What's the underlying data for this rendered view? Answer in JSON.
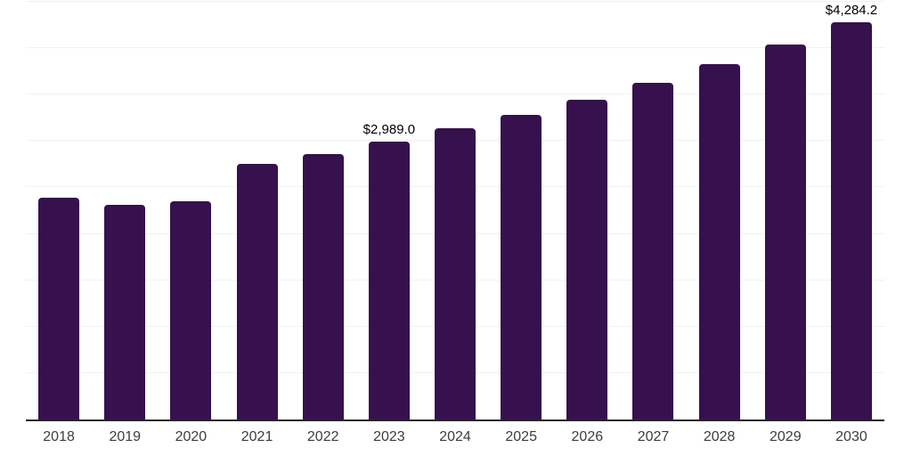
{
  "chart_data": {
    "type": "bar",
    "title": "",
    "xlabel": "",
    "ylabel": "",
    "categories": [
      "2018",
      "2019",
      "2020",
      "2021",
      "2022",
      "2023",
      "2024",
      "2025",
      "2026",
      "2027",
      "2028",
      "2029",
      "2030"
    ],
    "values": [
      2390,
      2310,
      2355,
      2757,
      2862,
      2989.0,
      3140,
      3285,
      3445,
      3630,
      3827,
      4040,
      4284.2
    ],
    "value_labels": [
      {
        "category": "2023",
        "text": "$2,989.0"
      },
      {
        "category": "2030",
        "text": "$4,284.2"
      }
    ],
    "ylim": [
      0,
      4500
    ],
    "gridline_step": 500,
    "grid": "horizontal-faint",
    "legend": "none",
    "y_axis_tick_labels": "none",
    "bar_color": "#36114d",
    "gridline_color": "#f1f1f4",
    "axis_line_color": "#262626",
    "tick_label_color": "#3d3d3d",
    "value_label_color": "#000000",
    "background_color": "#ffffff"
  }
}
